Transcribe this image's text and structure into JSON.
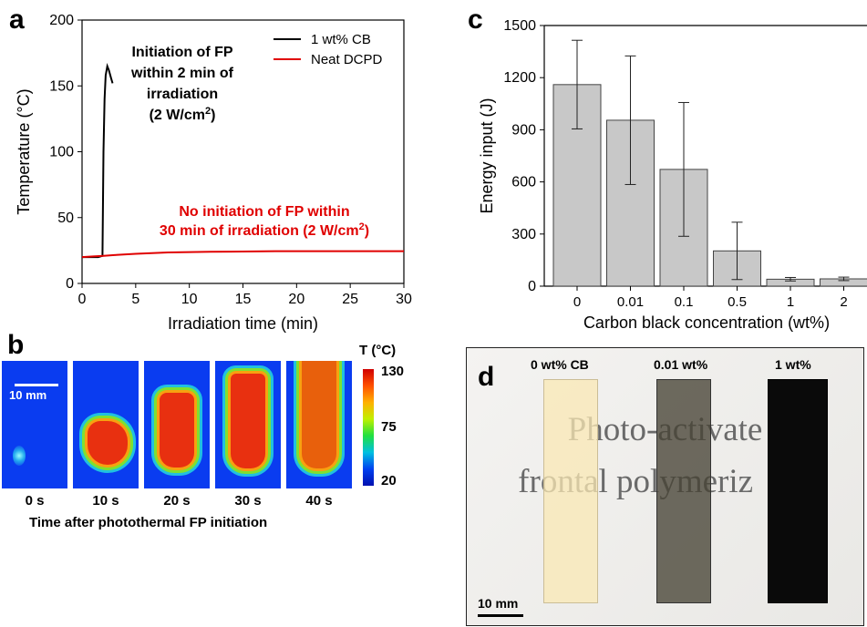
{
  "panels": {
    "a": "a",
    "b": "b",
    "c": "c",
    "d": "d"
  },
  "chart_data": [
    {
      "type": "line",
      "panel": "a",
      "xlabel": "Irradiation time (min)",
      "ylabel": "Temperature (°C)",
      "xlim": [
        0,
        30
      ],
      "ylim": [
        0,
        200
      ],
      "xticks": [
        0,
        5,
        10,
        15,
        20,
        25,
        30
      ],
      "yticks": [
        0,
        50,
        100,
        150,
        200
      ],
      "legend_position": "top-right",
      "series": [
        {
          "name": "1 wt% CB",
          "color": "#000000",
          "points": [
            [
              0,
              20
            ],
            [
              0.5,
              20
            ],
            [
              1,
              20
            ],
            [
              1.5,
              20
            ],
            [
              1.9,
              21
            ],
            [
              2.0,
              100
            ],
            [
              2.1,
              140
            ],
            [
              2.2,
              158
            ],
            [
              2.35,
              165
            ],
            [
              2.5,
              162
            ],
            [
              2.7,
              156
            ],
            [
              2.85,
              152
            ]
          ]
        },
        {
          "name": "Neat DCPD",
          "color": "#e00000",
          "points": [
            [
              0,
              20
            ],
            [
              1,
              20.5
            ],
            [
              2,
              21
            ],
            [
              3,
              21.5
            ],
            [
              5,
              22.5
            ],
            [
              8,
              23.5
            ],
            [
              12,
              24
            ],
            [
              18,
              24.5
            ],
            [
              24,
              24.5
            ],
            [
              30,
              24.5
            ]
          ]
        }
      ],
      "annotations": [
        {
          "lines": [
            "Initiation of FP",
            "within 2 min of",
            "irradiation",
            "(2 W/cm",
            "2",
            ")"
          ],
          "color": "#000000"
        },
        {
          "lines": [
            "No initiation of FP within",
            "30 min of irradiation (2 W/cm",
            "2",
            ")"
          ],
          "color": "#e00000"
        }
      ]
    },
    {
      "type": "bar",
      "panel": "c",
      "categories": [
        "0",
        "0.01",
        "0.1",
        "0.5",
        "1",
        "2"
      ],
      "values": [
        1160,
        955,
        672,
        203,
        40,
        42
      ],
      "errors": [
        255,
        370,
        385,
        165,
        10,
        10
      ],
      "xlabel": "Carbon black concentration (wt%)",
      "ylabel": "Energy input (J)",
      "ylim": [
        0,
        1500
      ],
      "yticks": [
        0,
        300,
        600,
        900,
        1200,
        1500
      ],
      "bar_color": "#c8c8c8"
    }
  ],
  "thermal": {
    "times": [
      "0 s",
      "10 s",
      "20 s",
      "30 s",
      "40 s"
    ],
    "caption": "Time after photothermal FP initiation",
    "scale_bar": "10 mm",
    "colorbar_title": "T (°C)",
    "colorbar_ticks": [
      "130",
      "75",
      "20"
    ]
  },
  "photo": {
    "labels": [
      "0 wt% CB",
      "0.01 wt%",
      "1 wt%"
    ],
    "background_text": [
      "Photo-activate",
      "frontal polymeriz   on"
    ],
    "scale_bar": "10 mm"
  }
}
